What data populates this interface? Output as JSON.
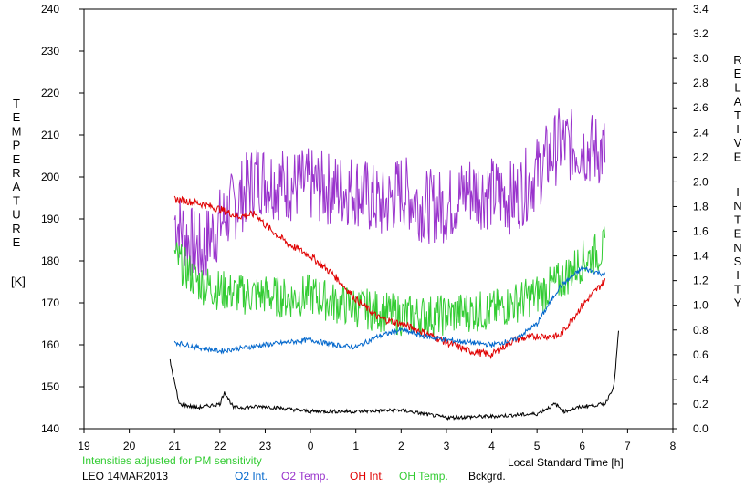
{
  "chart_data": {
    "type": "line",
    "left_axis": {
      "label_letters": [
        "T",
        "E",
        "M",
        "P",
        "E",
        "R",
        "A",
        "T",
        "U",
        "R",
        "E"
      ],
      "unit": "[K]",
      "ylim": [
        140,
        240
      ],
      "ticks": [
        "140",
        "150",
        "160",
        "170",
        "180",
        "190",
        "200",
        "210",
        "220",
        "230",
        "240"
      ]
    },
    "right_axis": {
      "label_word1": [
        "R",
        "E",
        "L",
        "A",
        "T",
        "I",
        "V",
        "E"
      ],
      "label_word2": [
        "I",
        "N",
        "T",
        "E",
        "N",
        "S",
        "I",
        "T",
        "Y"
      ],
      "ylim": [
        0.0,
        3.4
      ],
      "ticks": [
        "0.0",
        "0.2",
        "0.4",
        "0.6",
        "0.8",
        "1.0",
        "1.2",
        "1.4",
        "1.6",
        "1.8",
        "2.0",
        "2.2",
        "2.4",
        "2.6",
        "2.8",
        "3.0",
        "3.2",
        "3.4"
      ]
    },
    "x_axis": {
      "label": "Local Standard Time [h]",
      "ticks": [
        "19",
        "20",
        "21",
        "22",
        "23",
        "0",
        "1",
        "2",
        "3",
        "4",
        "5",
        "6",
        "7",
        "8"
      ],
      "xlim": [
        19,
        32
      ]
    },
    "note": "Intensities adjusted for PM sensitivity",
    "station_date": "LEO 14MAR2013",
    "legend": [
      {
        "name": "O2 Int.",
        "color": "#0066cc"
      },
      {
        "name": "O2 Temp.",
        "color": "#9933cc"
      },
      {
        "name": "OH Int.",
        "color": "#e00000"
      },
      {
        "name": "OH Temp.",
        "color": "#33cc33"
      },
      {
        "name": "Bckgrd.",
        "color": "#000000"
      }
    ],
    "series": [
      {
        "name": "O2 Temp.",
        "axis": "left",
        "color": "#9933cc",
        "points": [
          [
            21.0,
            190
          ],
          [
            21.3,
            185
          ],
          [
            21.6,
            182
          ],
          [
            21.8,
            186
          ],
          [
            22.3,
            193
          ],
          [
            22.8,
            200
          ],
          [
            23.5,
            198
          ],
          [
            24.0,
            198
          ],
          [
            24.5,
            197
          ],
          [
            25.0,
            197
          ],
          [
            25.6,
            193
          ],
          [
            26.0,
            197
          ],
          [
            26.5,
            193
          ],
          [
            27.0,
            193
          ],
          [
            27.5,
            197
          ],
          [
            28.0,
            196
          ],
          [
            28.5,
            195
          ],
          [
            29.0,
            201
          ],
          [
            29.5,
            208
          ],
          [
            30.0,
            207
          ],
          [
            30.5,
            206
          ]
        ],
        "noise": 9
      },
      {
        "name": "OH Temp.",
        "axis": "left",
        "color": "#33cc33",
        "points": [
          [
            21.0,
            181
          ],
          [
            21.5,
            175
          ],
          [
            22.0,
            173
          ],
          [
            22.5,
            172
          ],
          [
            23.0,
            172
          ],
          [
            23.5,
            171
          ],
          [
            24.0,
            172
          ],
          [
            24.5,
            170
          ],
          [
            25.0,
            169
          ],
          [
            25.5,
            168
          ],
          [
            26.0,
            167
          ],
          [
            26.5,
            167
          ],
          [
            27.0,
            167
          ],
          [
            27.5,
            168
          ],
          [
            28.0,
            168
          ],
          [
            28.5,
            170
          ],
          [
            29.0,
            172
          ],
          [
            29.5,
            175
          ],
          [
            30.0,
            180
          ],
          [
            30.5,
            183
          ]
        ],
        "noise": 5
      },
      {
        "name": "OH Int.",
        "axis": "right",
        "color": "#e00000",
        "points": [
          [
            21.0,
            1.86
          ],
          [
            21.5,
            1.83
          ],
          [
            22.0,
            1.78
          ],
          [
            22.4,
            1.72
          ],
          [
            22.8,
            1.74
          ],
          [
            23.0,
            1.65
          ],
          [
            23.5,
            1.5
          ],
          [
            24.0,
            1.4
          ],
          [
            24.5,
            1.25
          ],
          [
            25.0,
            1.05
          ],
          [
            25.5,
            0.9
          ],
          [
            26.0,
            0.85
          ],
          [
            26.5,
            0.78
          ],
          [
            27.0,
            0.7
          ],
          [
            27.5,
            0.63
          ],
          [
            28.0,
            0.6
          ],
          [
            28.5,
            0.72
          ],
          [
            29.0,
            0.75
          ],
          [
            29.5,
            0.75
          ],
          [
            30.0,
            1.0
          ],
          [
            30.5,
            1.2
          ]
        ],
        "noise": 0.03
      },
      {
        "name": "O2 Int.",
        "axis": "right",
        "color": "#0066cc",
        "points": [
          [
            21.0,
            0.7
          ],
          [
            21.5,
            0.66
          ],
          [
            22.0,
            0.63
          ],
          [
            22.4,
            0.65
          ],
          [
            23.0,
            0.68
          ],
          [
            23.5,
            0.7
          ],
          [
            24.0,
            0.72
          ],
          [
            24.5,
            0.68
          ],
          [
            25.0,
            0.66
          ],
          [
            25.5,
            0.75
          ],
          [
            26.0,
            0.8
          ],
          [
            26.5,
            0.75
          ],
          [
            27.0,
            0.72
          ],
          [
            27.5,
            0.7
          ],
          [
            28.0,
            0.68
          ],
          [
            28.5,
            0.72
          ],
          [
            29.0,
            0.85
          ],
          [
            29.5,
            1.15
          ],
          [
            30.0,
            1.3
          ],
          [
            30.5,
            1.25
          ]
        ],
        "noise": 0.02
      },
      {
        "name": "Bckgrd.",
        "axis": "right",
        "color": "#000000",
        "points": [
          [
            20.9,
            0.55
          ],
          [
            21.1,
            0.2
          ],
          [
            21.5,
            0.17
          ],
          [
            22.0,
            0.2
          ],
          [
            22.1,
            0.3
          ],
          [
            22.3,
            0.17
          ],
          [
            23.0,
            0.18
          ],
          [
            24.0,
            0.14
          ],
          [
            25.0,
            0.14
          ],
          [
            26.0,
            0.15
          ],
          [
            27.0,
            0.09
          ],
          [
            28.0,
            0.1
          ],
          [
            29.0,
            0.12
          ],
          [
            29.4,
            0.2
          ],
          [
            29.6,
            0.14
          ],
          [
            30.0,
            0.18
          ],
          [
            30.5,
            0.2
          ],
          [
            30.7,
            0.35
          ],
          [
            30.8,
            0.78
          ]
        ],
        "noise": 0.015
      }
    ]
  }
}
